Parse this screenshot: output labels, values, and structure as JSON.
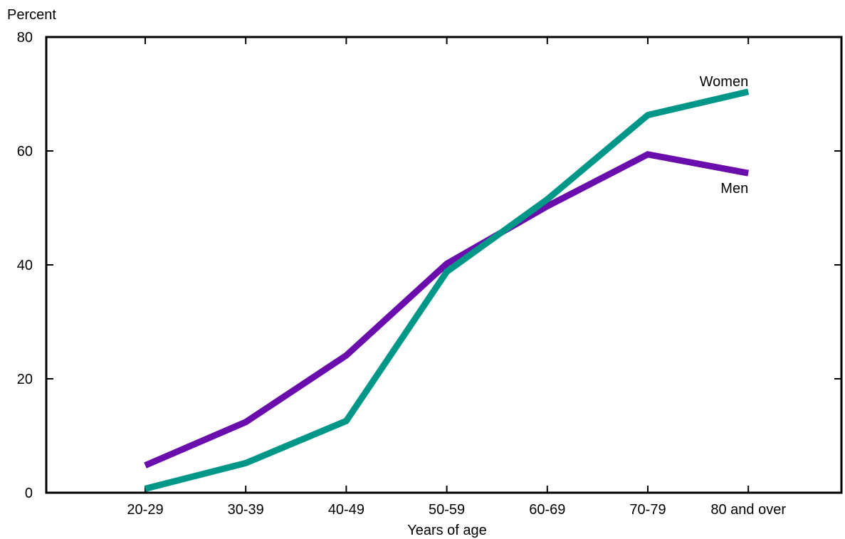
{
  "chart_data": {
    "type": "line",
    "title": "",
    "xlabel": "Years of age",
    "ylabel": "Percent",
    "categories": [
      "20-29",
      "30-39",
      "40-49",
      "50-59",
      "60-69",
      "70-79",
      "80 and over"
    ],
    "ylim": [
      0,
      80
    ],
    "yticks": [
      0,
      20,
      40,
      60,
      80
    ],
    "grid": false,
    "legend": "none",
    "series": [
      {
        "name": "Men",
        "color": "#6a0dad",
        "values": [
          4.8,
          12.4,
          24.1,
          40.2,
          50.3,
          59.4,
          56.1
        ]
      },
      {
        "name": "Women",
        "color": "#009688",
        "values": [
          0.7,
          5.2,
          12.6,
          38.8,
          51.5,
          66.3,
          70.4
        ]
      }
    ]
  }
}
